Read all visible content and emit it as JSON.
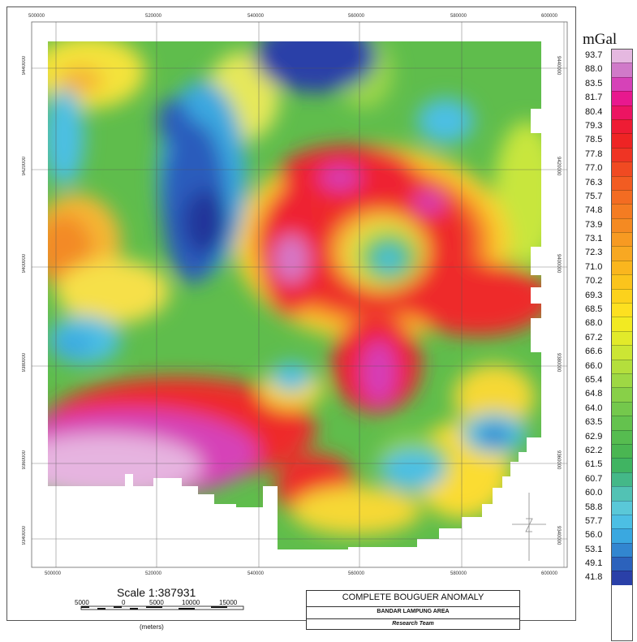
{
  "map": {
    "x_labels": [
      "500000",
      "520000",
      "540000",
      "560000",
      "580000",
      "600000"
    ],
    "y_labels": [
      "9440000",
      "9420000",
      "9400000",
      "9380000",
      "9360000",
      "9340000"
    ]
  },
  "scale": {
    "title": "Scale 1:387931",
    "ticks": [
      "5000",
      "0",
      "5000",
      "10000",
      "15000"
    ],
    "units": "(meters)"
  },
  "title_box": {
    "main": "COMPLETE BOUGUER ANOMALY",
    "area": "BANDAR LAMPUNG AREA",
    "team": "Research Team"
  },
  "legend": {
    "unit": "mGal",
    "entries": [
      {
        "value": "93.7",
        "color": "#e5b8e0"
      },
      {
        "value": "88.0",
        "color": "#d07ac9"
      },
      {
        "value": "83.5",
        "color": "#d642b8"
      },
      {
        "value": "81.7",
        "color": "#e8188e"
      },
      {
        "value": "80.4",
        "color": "#ec1462"
      },
      {
        "value": "79.3",
        "color": "#ee1c34"
      },
      {
        "value": "78.5",
        "color": "#ee2424"
      },
      {
        "value": "77.8",
        "color": "#ef3424"
      },
      {
        "value": "77.0",
        "color": "#f04a22"
      },
      {
        "value": "76.3",
        "color": "#f25c22"
      },
      {
        "value": "75.7",
        "color": "#f36c22"
      },
      {
        "value": "74.8",
        "color": "#f47c22"
      },
      {
        "value": "73.9",
        "color": "#f58a22"
      },
      {
        "value": "73.1",
        "color": "#f79a22"
      },
      {
        "value": "72.3",
        "color": "#f8a822"
      },
      {
        "value": "71.0",
        "color": "#fab61e"
      },
      {
        "value": "70.2",
        "color": "#fbc41c"
      },
      {
        "value": "69.3",
        "color": "#fcd21c"
      },
      {
        "value": "68.5",
        "color": "#fde020"
      },
      {
        "value": "68.0",
        "color": "#f2ea22"
      },
      {
        "value": "67.2",
        "color": "#e2ea2a"
      },
      {
        "value": "66.6",
        "color": "#cce634"
      },
      {
        "value": "66.0",
        "color": "#b4df3c"
      },
      {
        "value": "65.4",
        "color": "#9ed844"
      },
      {
        "value": "64.8",
        "color": "#88d048"
      },
      {
        "value": "64.0",
        "color": "#74c84c"
      },
      {
        "value": "63.5",
        "color": "#64c24e"
      },
      {
        "value": "62.9",
        "color": "#56bc50"
      },
      {
        "value": "62.2",
        "color": "#4ab652"
      },
      {
        "value": "61.5",
        "color": "#40b462"
      },
      {
        "value": "60.7",
        "color": "#44b888"
      },
      {
        "value": "60.0",
        "color": "#52c2b4"
      },
      {
        "value": "58.8",
        "color": "#5ac8d8"
      },
      {
        "value": "57.7",
        "color": "#4cbfe4"
      },
      {
        "value": "56.0",
        "color": "#3aa8e0"
      },
      {
        "value": "53.1",
        "color": "#3286d0"
      },
      {
        "value": "49.1",
        "color": "#2c62bc"
      },
      {
        "value": "41.8",
        "color": "#2a40a8"
      }
    ]
  }
}
